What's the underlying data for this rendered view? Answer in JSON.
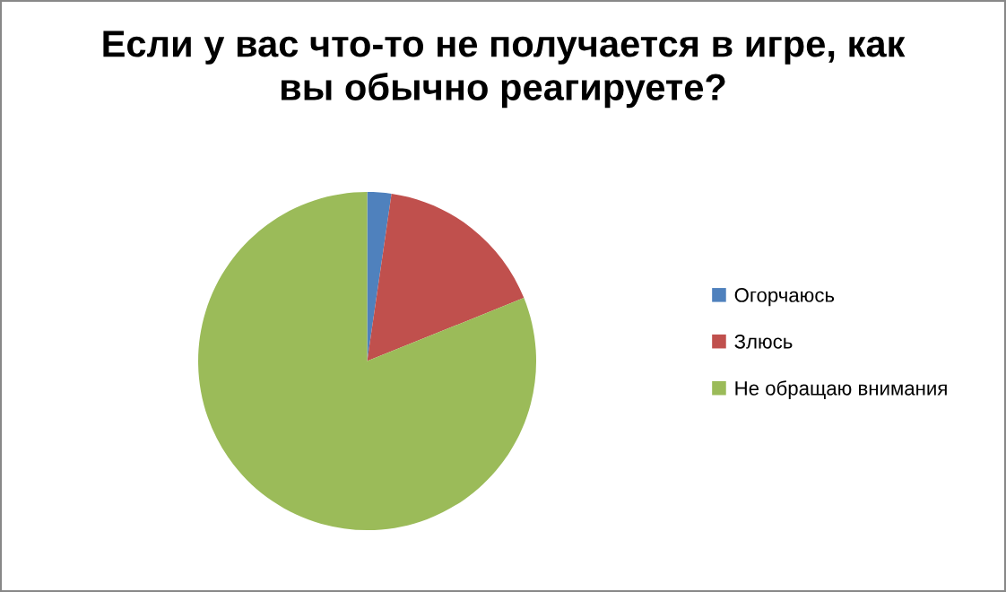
{
  "chart_data": {
    "type": "pie",
    "title": "Если у вас что-то не получается в игре, как\nвы обычно реагируете?",
    "categories": [
      "Огорчаюсь",
      "Злюсь",
      "Не обращаю внимания"
    ],
    "values": [
      2.3,
      16.6,
      81.1
    ],
    "colors": [
      "#4f81bd",
      "#c0504d",
      "#9bbb59"
    ],
    "legend": "right"
  }
}
